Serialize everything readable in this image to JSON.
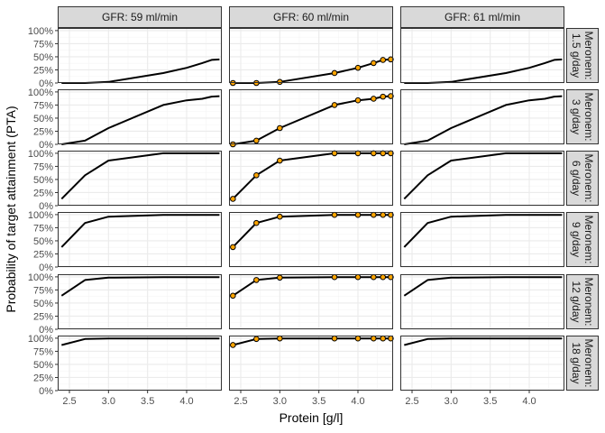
{
  "chart_data": {
    "type": "line",
    "xlabel": "Protein [g/l]",
    "ylabel": "Probability of target attainment (PTA)",
    "xlim": [
      2.35,
      4.45
    ],
    "ylim": [
      0,
      1.05
    ],
    "x_ticks": [
      2.5,
      3.0,
      3.5,
      4.0
    ],
    "x_tick_labels": [
      "2.5",
      "3.0",
      "3.5",
      "4.0"
    ],
    "y_ticks": [
      0,
      0.25,
      0.5,
      0.75,
      1.0
    ],
    "y_tick_labels": [
      "0%",
      "25%",
      "50%",
      "75%",
      "100%"
    ],
    "grid": true,
    "colors": {
      "line": "#000000",
      "point_fill": "#FFA500",
      "point_stroke": "#000000",
      "strip_bg": "#d9d9d9",
      "panel_border": "#333333",
      "grid_major": "#ebebeb",
      "grid_minor": "#f5f5f5"
    },
    "facet_columns": [
      "GFR: 59 ml/min",
      "GFR: 60 ml/min",
      "GFR: 61 ml/min"
    ],
    "facet_rows": [
      [
        "Meronem:",
        "1.5 g/day"
      ],
      [
        "Meronem:",
        "3 g/day"
      ],
      [
        "Meronem:",
        "6 g/day"
      ],
      [
        "Meronem:",
        "9 g/day"
      ],
      [
        "Meronem:",
        "12 g/day"
      ],
      [
        "Meronem:",
        "18 g/day"
      ]
    ],
    "x": [
      2.4,
      2.7,
      3.0,
      3.7,
      4.0,
      4.2,
      4.32,
      4.42
    ],
    "points_column": 1,
    "series": [
      {
        "values": [
          0.0,
          0.0,
          0.02,
          0.19,
          0.29,
          0.38,
          0.44,
          0.45
        ]
      },
      {
        "values": [
          0.0,
          0.07,
          0.31,
          0.75,
          0.84,
          0.87,
          0.91,
          0.92
        ]
      },
      {
        "values": [
          0.13,
          0.58,
          0.86,
          1.0,
          1.0,
          1.0,
          1.0,
          1.0
        ]
      },
      {
        "values": [
          0.38,
          0.84,
          0.96,
          0.995,
          0.995,
          0.995,
          0.995,
          0.995
        ]
      },
      {
        "values": [
          0.64,
          0.94,
          0.985,
          0.995,
          0.995,
          0.995,
          0.995,
          0.995
        ]
      },
      {
        "values": [
          0.87,
          0.985,
          0.995,
          0.995,
          0.995,
          0.995,
          0.995,
          0.995
        ]
      }
    ]
  }
}
